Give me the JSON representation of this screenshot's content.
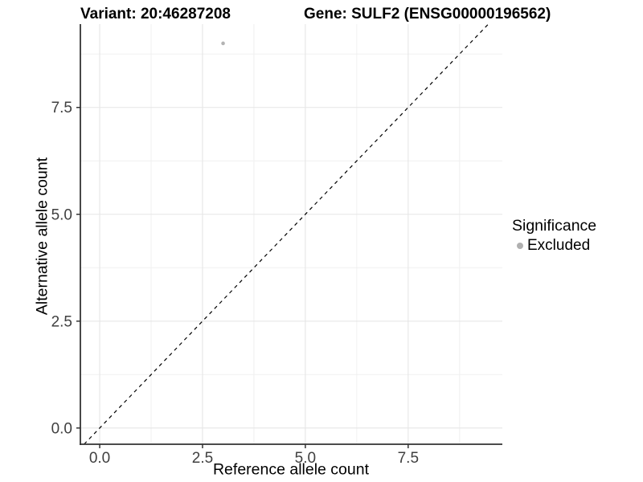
{
  "chart_data": {
    "type": "scatter",
    "title_left": "Variant: 20:46287208",
    "title_right": "Gene: SULF2 (ENSG00000196562)",
    "xlabel": "Reference allele count",
    "ylabel": "Alternative allele count",
    "xlim": [
      -0.47,
      9.79
    ],
    "ylim": [
      -0.38,
      9.45
    ],
    "x_ticks": [
      0.0,
      2.5,
      5.0,
      7.5
    ],
    "x_tick_labels": [
      "0.0",
      "2.5",
      "5.0",
      "7.5"
    ],
    "y_ticks": [
      0.0,
      2.5,
      5.0,
      7.5
    ],
    "y_tick_labels": [
      "0.0",
      "2.5",
      "5.0",
      "7.5"
    ],
    "x_minor_ticks": [
      1.25,
      3.75,
      6.25,
      8.75
    ],
    "y_minor_ticks": [
      1.25,
      3.75,
      6.25,
      8.75
    ],
    "grid": true,
    "background": "#ffffff",
    "series": [
      {
        "name": "Excluded",
        "color": "#b3b3b3",
        "points": [
          {
            "x": 3,
            "y": 9
          }
        ]
      }
    ],
    "reference_line": {
      "label": "y = x",
      "type": "identity",
      "style": "dashed",
      "color": "#000000"
    },
    "legend": {
      "title": "Significance",
      "position": "right",
      "items": [
        {
          "label": "Excluded",
          "color": "#b0b0b0"
        }
      ]
    },
    "style_colors": {
      "axis_line": "#333333",
      "tick_mark": "#333333",
      "tick_label": "#404040",
      "grid_major": "#e6e6e6",
      "grid_minor": "#f0f0f0"
    }
  }
}
